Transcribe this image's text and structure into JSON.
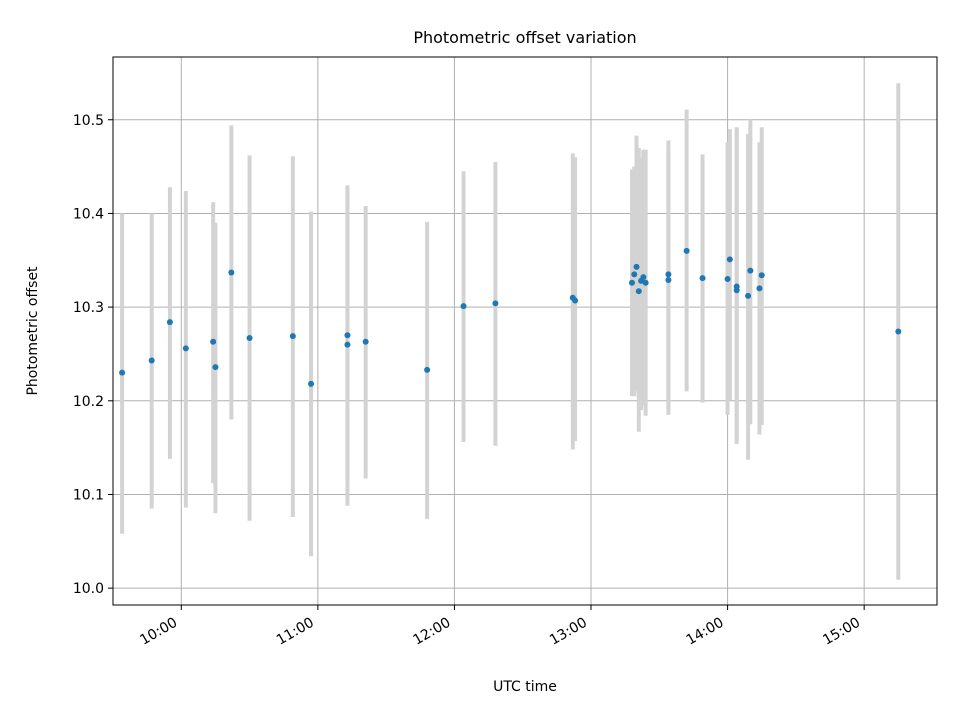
{
  "chart_data": {
    "type": "scatter",
    "title": "Photometric offset variation",
    "xlabel": "UTC time",
    "ylabel": "Photometric offset",
    "xlim": [
      "09:30",
      "15:32"
    ],
    "ylim": [
      9.982,
      10.567
    ],
    "x_ticks": [
      "10:00",
      "11:00",
      "12:00",
      "13:00",
      "14:00",
      "15:00"
    ],
    "y_ticks": [
      10.0,
      10.1,
      10.2,
      10.3,
      10.4,
      10.5
    ],
    "grid": true,
    "legend": "none",
    "colors": {
      "marker": "#1f77b4",
      "errorbar": "#d3d3d3",
      "grid": "#b0b0b0"
    },
    "series": [
      {
        "points": [
          {
            "x": "09:34",
            "y": 10.23,
            "ylow": 10.058,
            "yhigh": 10.4
          },
          {
            "x": "09:47",
            "y": 10.243,
            "ylow": 10.085,
            "yhigh": 10.4
          },
          {
            "x": "09:55",
            "y": 10.284,
            "ylow": 10.138,
            "yhigh": 10.428
          },
          {
            "x": "10:02",
            "y": 10.256,
            "ylow": 10.086,
            "yhigh": 10.424
          },
          {
            "x": "10:14",
            "y": 10.263,
            "ylow": 10.112,
            "yhigh": 10.412
          },
          {
            "x": "10:15",
            "y": 10.236,
            "ylow": 10.08,
            "yhigh": 10.39
          },
          {
            "x": "10:22",
            "y": 10.337,
            "ylow": 10.18,
            "yhigh": 10.494
          },
          {
            "x": "10:30",
            "y": 10.267,
            "ylow": 10.072,
            "yhigh": 10.462
          },
          {
            "x": "10:49",
            "y": 10.269,
            "ylow": 10.076,
            "yhigh": 10.461
          },
          {
            "x": "10:57",
            "y": 10.218,
            "ylow": 10.034,
            "yhigh": 10.402
          },
          {
            "x": "11:13",
            "y": 10.26,
            "ylow": 10.088,
            "yhigh": 10.43
          },
          {
            "x": "11:13",
            "y": 10.27,
            "ylow": 10.11,
            "yhigh": 10.428
          },
          {
            "x": "11:21",
            "y": 10.263,
            "ylow": 10.117,
            "yhigh": 10.408
          },
          {
            "x": "11:48",
            "y": 10.233,
            "ylow": 10.074,
            "yhigh": 10.391
          },
          {
            "x": "12:04",
            "y": 10.301,
            "ylow": 10.156,
            "yhigh": 10.445
          },
          {
            "x": "12:18",
            "y": 10.304,
            "ylow": 10.152,
            "yhigh": 10.455
          },
          {
            "x": "12:52",
            "y": 10.31,
            "ylow": 10.148,
            "yhigh": 10.464
          },
          {
            "x": "12:53",
            "y": 10.307,
            "ylow": 10.157,
            "yhigh": 10.46
          },
          {
            "x": "13:18",
            "y": 10.326,
            "ylow": 10.205,
            "yhigh": 10.447
          },
          {
            "x": "13:19",
            "y": 10.335,
            "ylow": 10.205,
            "yhigh": 10.45
          },
          {
            "x": "13:20",
            "y": 10.343,
            "ylow": 10.21,
            "yhigh": 10.483
          },
          {
            "x": "13:21",
            "y": 10.317,
            "ylow": 10.167,
            "yhigh": 10.47
          },
          {
            "x": "13:22",
            "y": 10.328,
            "ylow": 10.19,
            "yhigh": 10.46
          },
          {
            "x": "13:23",
            "y": 10.332,
            "ylow": 10.195,
            "yhigh": 10.468
          },
          {
            "x": "13:24",
            "y": 10.326,
            "ylow": 10.184,
            "yhigh": 10.468
          },
          {
            "x": "13:34",
            "y": 10.335,
            "ylow": 10.185,
            "yhigh": 10.478
          },
          {
            "x": "13:34",
            "y": 10.329,
            "ylow": 10.19,
            "yhigh": 10.47
          },
          {
            "x": "13:42",
            "y": 10.36,
            "ylow": 10.21,
            "yhigh": 10.511
          },
          {
            "x": "13:49",
            "y": 10.331,
            "ylow": 10.198,
            "yhigh": 10.463
          },
          {
            "x": "14:00",
            "y": 10.33,
            "ylow": 10.185,
            "yhigh": 10.476
          },
          {
            "x": "14:01",
            "y": 10.351,
            "ylow": 10.2,
            "yhigh": 10.49
          },
          {
            "x": "14:04",
            "y": 10.322,
            "ylow": 10.154,
            "yhigh": 10.492
          },
          {
            "x": "14:04",
            "y": 10.318,
            "ylow": 10.16,
            "yhigh": 10.488
          },
          {
            "x": "14:09",
            "y": 10.312,
            "ylow": 10.137,
            "yhigh": 10.485
          },
          {
            "x": "14:10",
            "y": 10.339,
            "ylow": 10.175,
            "yhigh": 10.5
          },
          {
            "x": "14:14",
            "y": 10.32,
            "ylow": 10.164,
            "yhigh": 10.476
          },
          {
            "x": "14:15",
            "y": 10.334,
            "ylow": 10.174,
            "yhigh": 10.492
          },
          {
            "x": "15:15",
            "y": 10.274,
            "ylow": 10.009,
            "yhigh": 10.539
          }
        ]
      }
    ]
  }
}
